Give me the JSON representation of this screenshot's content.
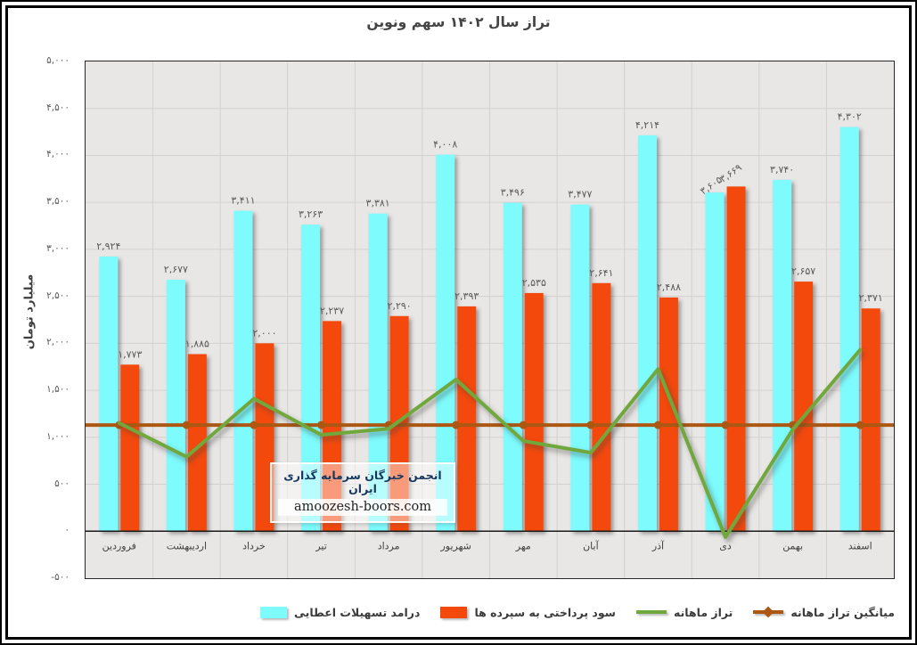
{
  "title": "تراز سال ۱۴۰۲ سهم ونوین",
  "y_axis": {
    "title": "میلیارد تومان",
    "tick_labels": [
      "۵,۰۰۰",
      "۴,۵۰۰",
      "۴,۰۰۰",
      "۳,۵۰۰",
      "۳,۰۰۰",
      "۲,۵۰۰",
      "۲,۰۰۰",
      "۱,۵۰۰",
      "۱,۰۰۰",
      "۵۰۰",
      "۰",
      "-۵۰۰"
    ]
  },
  "watermark": {
    "line1": "انجمن خبرگان سرمایه گذاری ایران",
    "line2": "amoozesh-boors.com"
  },
  "legend": {
    "items": [
      {
        "label": "درامد تسهیلات اعطایی",
        "type": "bar",
        "color": "#7dfbfd"
      },
      {
        "label": "سود پرداختی به سپرده ها",
        "type": "bar",
        "color": "#f4490c"
      },
      {
        "label": "تراز ماهانه",
        "type": "line",
        "color": "#6fa83d"
      },
      {
        "label": "میانگین تراز ماهانه",
        "type": "line-marker",
        "color": "#ac5813"
      }
    ]
  },
  "colors": {
    "plot_background": "#e9e7e5",
    "gridline": "#d3d1cf",
    "axis": "#262626",
    "data_label": "#595959",
    "month_label": "#404040",
    "bar_income": "#7dfbfd",
    "bar_interest": "#f4490c",
    "line_balance": "#6fa83d",
    "line_average": "#ac5813"
  },
  "chart_data": {
    "type": "bar+line combo",
    "title": "تراز سال ۱۴۰۲ سهم ونوین",
    "ylabel": "میلیارد تومان",
    "ylim": [
      -500,
      5000
    ],
    "ystep": 500,
    "grid": true,
    "legend_position": "bottom",
    "categories": [
      "فروردین",
      "اردیبهشت",
      "خرداد",
      "تیر",
      "مرداد",
      "شهریور",
      "مهر",
      "آبان",
      "آذر",
      "دی",
      "بهمن",
      "اسفند"
    ],
    "series": [
      {
        "name": "درامد تسهیلات اعطایی",
        "type": "bar",
        "color": "#7dfbfd",
        "values": [
          2924,
          2677,
          3411,
          3263,
          3381,
          4008,
          3496,
          3477,
          4214,
          3605,
          3740,
          4302
        ],
        "labels": [
          "۲,۹۲۴",
          "۲,۶۷۷",
          "۳,۴۱۱",
          "۳,۲۶۳",
          "۳,۳۸۱",
          "۴,۰۰۸",
          "۳,۴۹۶",
          "۳,۴۷۷",
          "۴,۲۱۴",
          "۳,۶۰۵",
          "۳,۷۴۰",
          "۴,۳۰۲"
        ]
      },
      {
        "name": "سود پرداختی به سپرده ها",
        "type": "bar",
        "color": "#f4490c",
        "values": [
          1773,
          1885,
          2000,
          2237,
          2290,
          2393,
          2535,
          2641,
          2488,
          3669,
          2657,
          2371
        ],
        "labels": [
          "۱,۷۷۳",
          "۱,۸۸۵",
          "۲,۰۰۰",
          "۲,۲۳۷",
          "۲,۲۹۰",
          "۲,۳۹۳",
          "۲,۵۳۵",
          "۲,۶۴۱",
          "۲,۴۸۸",
          "۳,۶۶۹",
          "۲,۶۵۷",
          "۲,۳۷۱"
        ]
      },
      {
        "name": "تراز ماهانه",
        "type": "line",
        "color": "#6fa83d",
        "values": [
          1151,
          792,
          1411,
          1026,
          1091,
          1615,
          961,
          836,
          1726,
          -64,
          1083,
          1931
        ]
      },
      {
        "name": "میانگین تراز ماهانه",
        "type": "flat-line-with-markers",
        "color": "#ac5813",
        "value": 1130
      }
    ]
  }
}
